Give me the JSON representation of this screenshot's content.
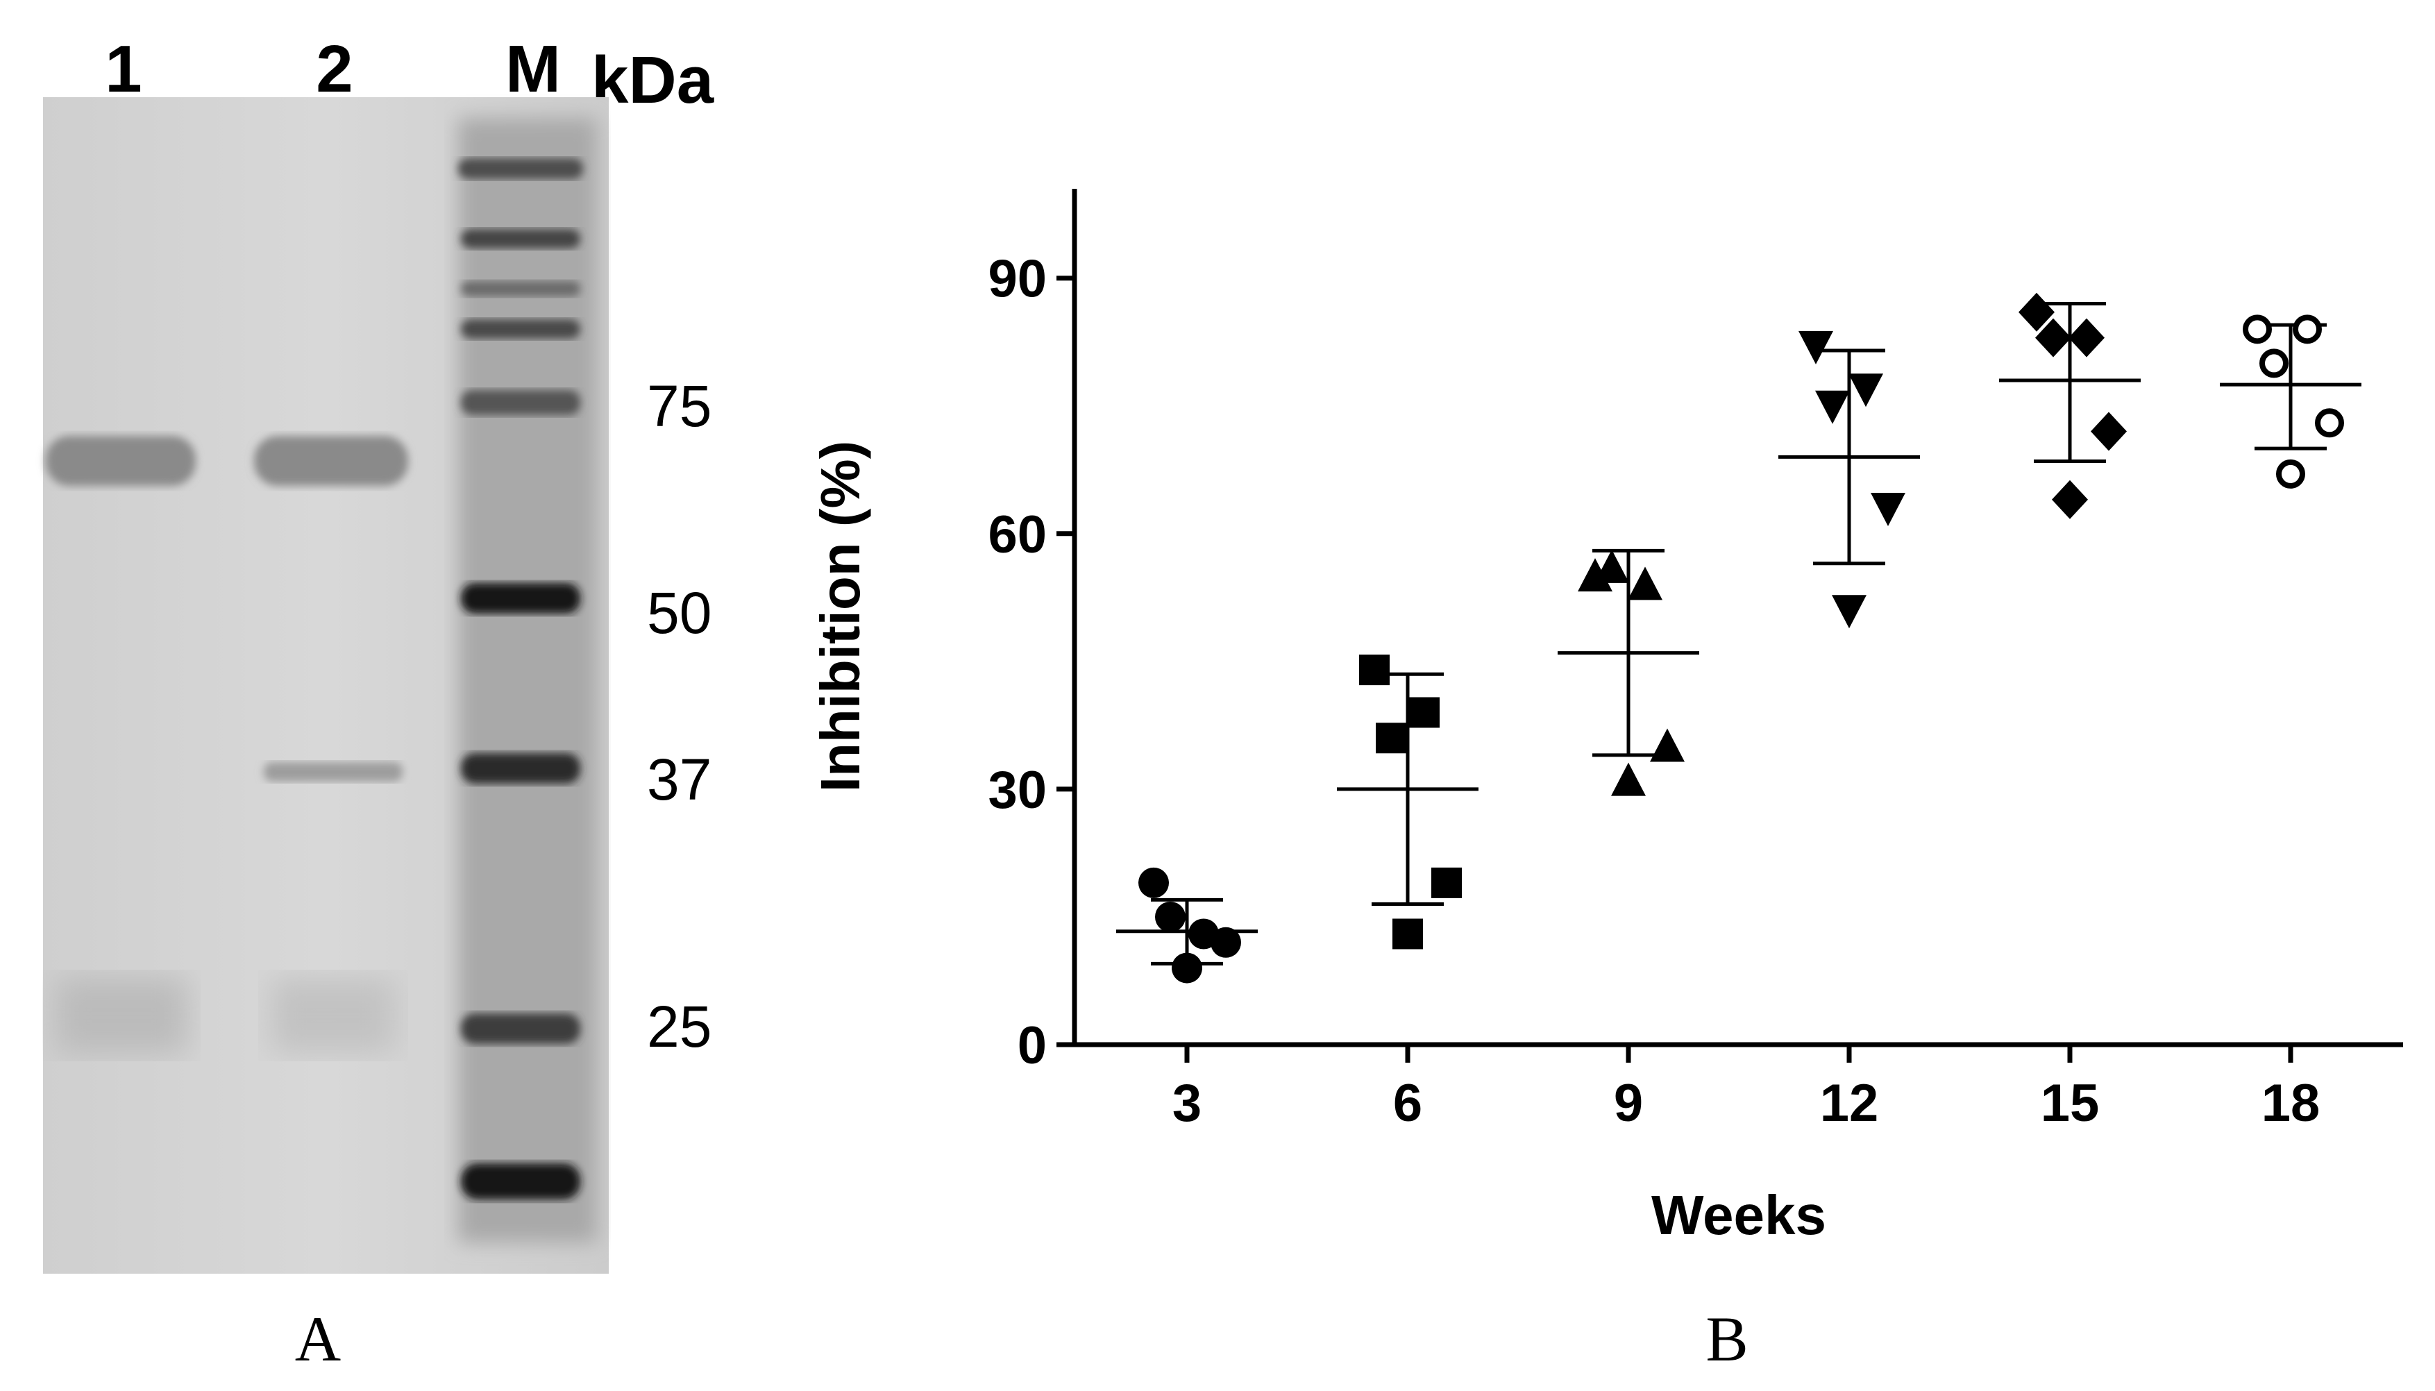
{
  "panel_a": {
    "label": "A",
    "lane_labels": [
      "1",
      "2",
      "M"
    ],
    "unit_label": "kDa",
    "marker_labels": [
      "75",
      "50",
      "37",
      "25"
    ],
    "colors": {
      "gel_bg": "#d4d4d4",
      "band_dark": "#141414"
    }
  },
  "panel_b": {
    "label": "B"
  },
  "chart_data": {
    "type": "scatter",
    "title": "",
    "xlabel": "Weeks",
    "ylabel": "Inhibition (%)",
    "ylim": [
      0,
      100
    ],
    "yticks": [
      0,
      30,
      60,
      90
    ],
    "categories": [
      "3",
      "6",
      "9",
      "12",
      "15",
      "18"
    ],
    "grid": false,
    "groups": [
      {
        "x": "3",
        "marker": "circle",
        "points": [
          19,
          13,
          15,
          12,
          9
        ],
        "mean": 13.3,
        "sd_low": 9.5,
        "sd_high": 17.0
      },
      {
        "x": "6",
        "marker": "square",
        "points": [
          44,
          39,
          36,
          19,
          13
        ],
        "mean": 30.0,
        "sd_low": 16.5,
        "sd_high": 43.5
      },
      {
        "x": "9",
        "marker": "triangle-up",
        "points": [
          55,
          54,
          56,
          35,
          31
        ],
        "mean": 46.0,
        "sd_low": 34.0,
        "sd_high": 58.0
      },
      {
        "x": "12",
        "marker": "triangle-down",
        "points": [
          82,
          77,
          75,
          63,
          51
        ],
        "mean": 69.0,
        "sd_low": 56.5,
        "sd_high": 81.5
      },
      {
        "x": "15",
        "marker": "diamond",
        "points": [
          86,
          83,
          83,
          72,
          64
        ],
        "mean": 78.0,
        "sd_low": 68.5,
        "sd_high": 87.0
      },
      {
        "x": "18",
        "marker": "open-circle",
        "points": [
          84,
          84,
          80,
          73,
          67
        ],
        "mean": 77.5,
        "sd_low": 70.0,
        "sd_high": 84.5
      }
    ]
  }
}
